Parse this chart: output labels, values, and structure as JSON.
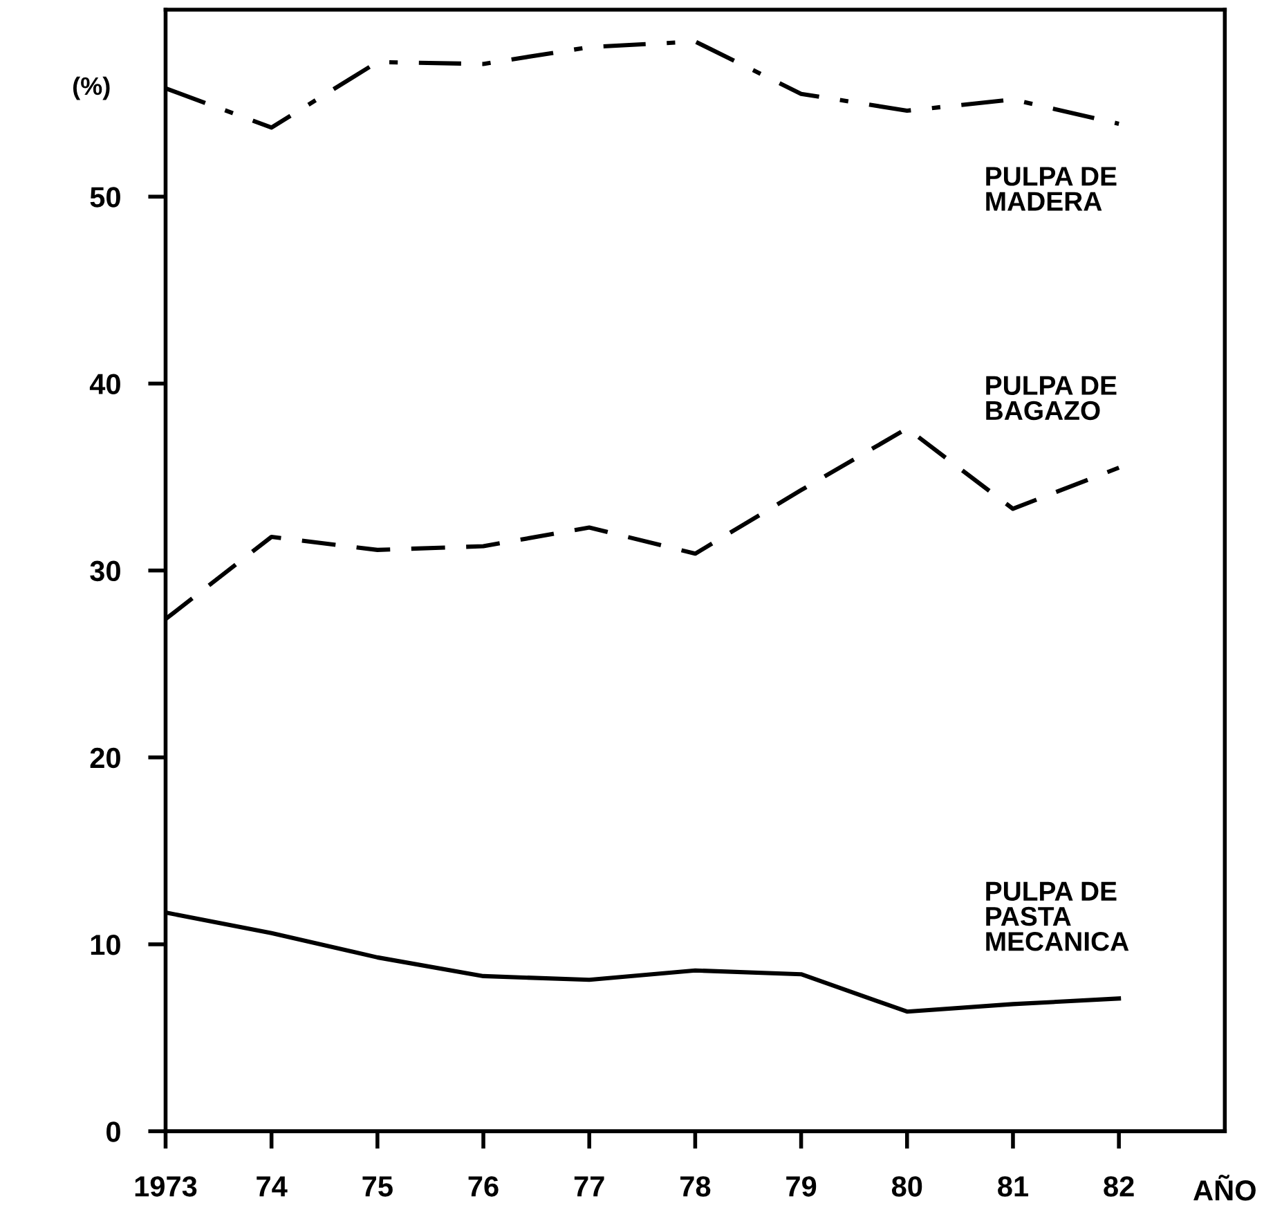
{
  "chart_data": {
    "type": "line",
    "xlabel": "AÑO",
    "ylabel": "(%)",
    "x": [
      1973,
      1974,
      1975,
      1976,
      1977,
      1978,
      1979,
      1980,
      1981,
      1982
    ],
    "series": [
      {
        "name": "PULPA DE\nMADERA",
        "color": "#000000",
        "line_style": "dashdot",
        "values": [
          55.8,
          53.7,
          57.2,
          57.1,
          58.0,
          58.3,
          55.5,
          54.6,
          55.2,
          53.9
        ]
      },
      {
        "name": "PULPA DE\nBAGAZO",
        "color": "#000000",
        "line_style": "dashed",
        "values": [
          27.4,
          31.8,
          31.1,
          31.3,
          32.3,
          30.9,
          34.3,
          37.6,
          33.3,
          35.5
        ]
      },
      {
        "name": "PULPA DE\nPASTA\nMECANICA",
        "color": "#000000",
        "line_style": "solid",
        "values": [
          11.7,
          10.6,
          9.3,
          8.3,
          8.1,
          8.6,
          8.4,
          6.4,
          6.8,
          7.1
        ]
      }
    ],
    "xlim": [
      1973,
      1983
    ],
    "ylim": [
      0,
      60
    ],
    "xticks": [
      1973,
      {
        "value": 1974,
        "label": "74"
      },
      {
        "value": 1975,
        "label": "75"
      },
      {
        "value": 1976,
        "label": "76"
      },
      {
        "value": 1977,
        "label": "77"
      },
      {
        "value": 1978,
        "label": "78"
      },
      {
        "value": 1979,
        "label": "79"
      },
      {
        "value": 1980,
        "label": "80"
      },
      {
        "value": 1981,
        "label": "81"
      },
      {
        "value": 1982,
        "label": "82"
      }
    ],
    "yticks": [
      0,
      10,
      20,
      30,
      40,
      50
    ],
    "grid": false,
    "legend": false,
    "marker": "none"
  }
}
